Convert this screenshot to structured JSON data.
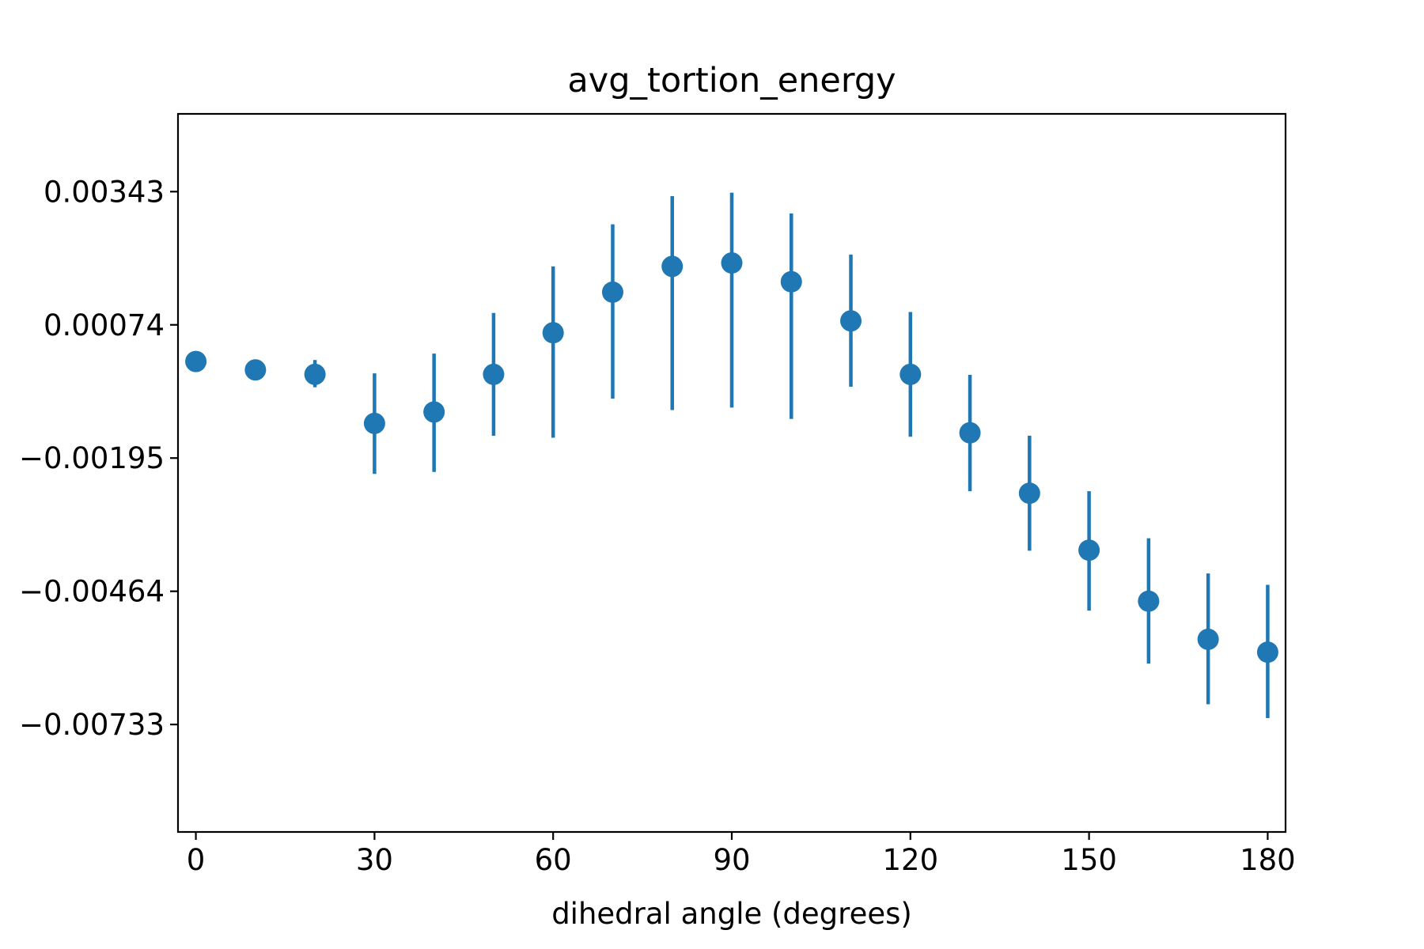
{
  "chart_data": {
    "type": "scatter",
    "title": "avg_tortion_energy",
    "xlabel": "dihedral angle (degrees)",
    "ylabel": "",
    "xlim": [
      -3,
      183
    ],
    "ylim": [
      -0.0095,
      0.005
    ],
    "x_ticks": [
      0,
      30,
      60,
      90,
      120,
      150,
      180
    ],
    "x_tick_labels": [
      "0",
      "30",
      "60",
      "90",
      "120",
      "150",
      "180"
    ],
    "y_ticks": [
      0.00343,
      0.00074,
      -0.00195,
      -0.00464,
      -0.00733
    ],
    "y_tick_labels": [
      "0.00343",
      "0.00074",
      "−0.00195",
      "−0.00464",
      "−0.00733"
    ],
    "grid": false,
    "color": "#1f77b4",
    "series": [
      {
        "x": [
          0,
          10,
          20,
          30,
          40,
          50,
          60,
          70,
          80,
          90,
          100,
          110,
          120,
          130,
          140,
          150,
          160,
          170,
          180
        ],
        "y": [
          0.0,
          -0.00017,
          -0.00026,
          -0.00125,
          -0.00102,
          -0.00026,
          0.00058,
          0.0014,
          0.00192,
          0.00199,
          0.00161,
          0.00082,
          -0.00026,
          -0.00144,
          -0.00266,
          -0.00381,
          -0.00484,
          -0.00561,
          -0.00587
        ],
        "yerr_low": [
          0.0,
          -0.00017,
          -0.00052,
          -0.00227,
          -0.00223,
          -0.0015,
          -0.00154,
          -0.00075,
          -0.00098,
          -0.00093,
          -0.00116,
          -0.00051,
          -0.00152,
          -0.00262,
          -0.00382,
          -0.00503,
          -0.0061,
          -0.00692,
          -0.0072
        ],
        "yerr_high": [
          0.0,
          -0.00017,
          3e-05,
          -0.00024,
          0.00016,
          0.00098,
          0.00192,
          0.00277,
          0.00334,
          0.00341,
          0.00299,
          0.00216,
          0.001,
          -0.00027,
          -0.0015,
          -0.00262,
          -0.00357,
          -0.00428,
          -0.00451
        ]
      }
    ]
  }
}
